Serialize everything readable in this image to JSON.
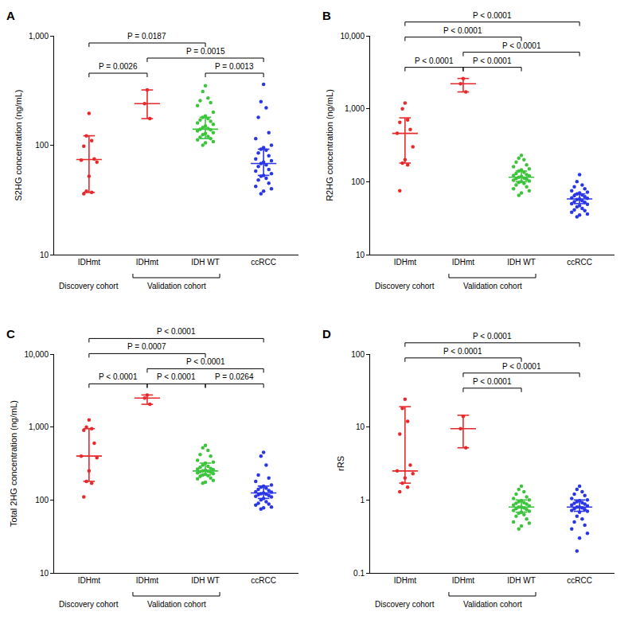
{
  "chart_data": [
    {
      "type": "scatter",
      "panel": "A",
      "y_label": "S2HG concentration (ng/mL)",
      "log": "y",
      "grid": false,
      "categories": [
        "IDHmt",
        "IDHmt",
        "IDH WT",
        "ccRCC"
      ],
      "colors": [
        "#e8292b",
        "#e8292b",
        "#3cc43c",
        "#2a36e6"
      ],
      "cohorts": [
        {
          "label": "Discovery cohort",
          "from": 0,
          "to": 0
        },
        {
          "label": "Validation cohort",
          "from": 1,
          "to": 2
        }
      ],
      "points": [
        [
          195,
          122,
          110,
          98,
          75,
          73,
          70,
          52,
          38,
          37,
          36
        ],
        [
          320,
          240,
          175
        ],
        [
          350,
          310,
          270,
          255,
          245,
          230,
          200,
          185,
          180,
          175,
          170,
          165,
          160,
          155,
          150,
          145,
          142,
          140,
          138,
          135,
          130,
          128,
          125,
          120,
          118,
          115,
          112,
          108,
          105,
          100
        ],
        [
          360,
          250,
          220,
          180,
          130,
          115,
          100,
          95,
          92,
          90,
          85,
          80,
          75,
          72,
          70,
          68,
          66,
          64,
          60,
          58,
          55,
          53,
          52,
          50,
          48,
          45,
          42,
          40,
          38,
          36
        ]
      ],
      "median": [
        74,
        240,
        140,
        68
      ],
      "q1": [
        37,
        175,
        115,
        53
      ],
      "q3": [
        122,
        320,
        180,
        92
      ],
      "ylim": [
        10,
        1000
      ],
      "yticks": [
        10,
        100,
        {
          "value": 1000,
          "label": "1,000"
        }
      ],
      "comparisons": [
        {
          "from": 1,
          "to": 3,
          "label": "P = 0.0015"
        },
        {
          "from": 0,
          "to": 2,
          "label": "P = 0.0187"
        },
        {
          "from": 0,
          "to": 1,
          "label": "P = 0.0026"
        },
        {
          "from": 2,
          "to": 3,
          "label": "P = 0.0013"
        }
      ]
    },
    {
      "type": "scatter",
      "panel": "B",
      "y_label": "R2HG concentration (ng/mL)",
      "log": "y",
      "grid": false,
      "categories": [
        "IDHmt",
        "IDHmt",
        "IDH WT",
        "ccRCC"
      ],
      "colors": [
        "#e8292b",
        "#e8292b",
        "#3cc43c",
        "#2a36e6"
      ],
      "cohorts": [
        {
          "label": "Discovery cohort",
          "from": 0,
          "to": 0
        },
        {
          "label": "Validation cohort",
          "from": 1,
          "to": 2
        }
      ],
      "points": [
        [
          1200,
          1000,
          700,
          650,
          520,
          460,
          300,
          200,
          180,
          170,
          75
        ],
        [
          2600,
          2200,
          1700
        ],
        [
          230,
          210,
          200,
          185,
          170,
          160,
          150,
          145,
          140,
          135,
          130,
          125,
          122,
          120,
          118,
          115,
          112,
          110,
          108,
          105,
          102,
          100,
          98,
          95,
          90,
          85,
          80,
          75,
          70,
          65
        ],
        [
          125,
          100,
          90,
          85,
          80,
          75,
          72,
          70,
          68,
          66,
          64,
          62,
          60,
          59,
          58,
          57,
          55,
          53,
          52,
          50,
          49,
          47,
          45,
          43,
          41,
          40,
          38,
          36,
          35,
          33
        ]
      ],
      "median": [
        460,
        2200,
        115,
        58
      ],
      "q1": [
        180,
        1700,
        100,
        50
      ],
      "q3": [
        750,
        2600,
        140,
        68
      ],
      "ylim": [
        10,
        10000
      ],
      "yticks": [
        10,
        100,
        {
          "value": 1000,
          "label": "1,000"
        },
        {
          "value": 10000,
          "label": "10,000"
        }
      ],
      "comparisons": [
        {
          "from": 0,
          "to": 3,
          "label": "P < 0.0001"
        },
        {
          "from": 1,
          "to": 3,
          "label": "P < 0.0001"
        },
        {
          "from": 0,
          "to": 2,
          "label": "P < 0.0001"
        },
        {
          "from": 0,
          "to": 1,
          "label": "P < 0.0001"
        },
        {
          "from": 1,
          "to": 2,
          "label": "P < 0.0001"
        }
      ]
    },
    {
      "type": "scatter",
      "panel": "C",
      "y_label": "Total 2HG concentration (ng/mL)",
      "log": "y",
      "grid": false,
      "categories": [
        "IDHmt",
        "IDHmt",
        "IDH WT",
        "ccRCC"
      ],
      "colors": [
        "#e8292b",
        "#e8292b",
        "#3cc43c",
        "#2a36e6"
      ],
      "cohorts": [
        {
          "label": "Discovery cohort",
          "from": 0,
          "to": 0
        },
        {
          "label": "Validation cohort",
          "from": 1,
          "to": 2
        }
      ],
      "points": [
        [
          1250,
          1000,
          950,
          900,
          600,
          400,
          380,
          250,
          180,
          170,
          110
        ],
        [
          2750,
          2500,
          2050
        ],
        [
          560,
          520,
          480,
          420,
          400,
          350,
          330,
          320,
          300,
          290,
          280,
          270,
          265,
          260,
          255,
          250,
          248,
          245,
          240,
          235,
          230,
          225,
          220,
          215,
          210,
          200,
          195,
          185,
          175,
          170
        ],
        [
          450,
          400,
          300,
          220,
          200,
          180,
          160,
          155,
          150,
          145,
          140,
          135,
          130,
          128,
          125,
          122,
          120,
          118,
          115,
          112,
          110,
          105,
          100,
          95,
          90,
          88,
          85,
          80,
          78,
          75
        ]
      ],
      "median": [
        400,
        2500,
        250,
        125
      ],
      "q1": [
        180,
        2050,
        220,
        105
      ],
      "q3": [
        950,
        2750,
        320,
        155
      ],
      "ylim": [
        10,
        10000
      ],
      "yticks": [
        10,
        100,
        {
          "value": 1000,
          "label": "1,000"
        },
        {
          "value": 10000,
          "label": "10,000"
        }
      ],
      "comparisons": [
        {
          "from": 0,
          "to": 3,
          "label": "P < 0.0001"
        },
        {
          "from": 1,
          "to": 3,
          "label": "P < 0.0001"
        },
        {
          "from": 0,
          "to": 2,
          "label": "P = 0.0007"
        },
        {
          "from": 0,
          "to": 1,
          "label": "P < 0.0001"
        },
        {
          "from": 1,
          "to": 2,
          "label": "P < 0.0001"
        },
        {
          "from": 2,
          "to": 3,
          "label": "P = 0.0264"
        }
      ]
    },
    {
      "type": "scatter",
      "panel": "D",
      "y_label": "rRS",
      "log": "y",
      "grid": false,
      "categories": [
        "IDHmt",
        "IDHmt",
        "IDH WT",
        "ccRCC"
      ],
      "colors": [
        "#e8292b",
        "#e8292b",
        "#3cc43c",
        "#2a36e6"
      ],
      "cohorts": [
        {
          "label": "Discovery cohort",
          "from": 0,
          "to": 0
        },
        {
          "label": "Validation cohort",
          "from": 1,
          "to": 2
        }
      ],
      "points": [
        [
          24,
          18,
          12,
          8,
          3.0,
          2.5,
          2.3,
          2.0,
          1.7,
          1.5,
          1.3
        ],
        [
          14,
          9.5,
          5.2
        ],
        [
          1.55,
          1.4,
          1.3,
          1.2,
          1.1,
          1.05,
          1.0,
          0.98,
          0.95,
          0.92,
          0.9,
          0.88,
          0.85,
          0.83,
          0.8,
          0.8,
          0.78,
          0.76,
          0.74,
          0.72,
          0.7,
          0.68,
          0.66,
          0.63,
          0.6,
          0.55,
          0.5,
          0.48,
          0.44,
          0.4
        ],
        [
          1.55,
          1.4,
          1.3,
          1.2,
          1.15,
          1.05,
          1.0,
          0.98,
          0.95,
          0.92,
          0.9,
          0.88,
          0.85,
          0.83,
          0.8,
          0.8,
          0.78,
          0.76,
          0.74,
          0.72,
          0.7,
          0.68,
          0.6,
          0.55,
          0.5,
          0.45,
          0.4,
          0.35,
          0.3,
          0.2
        ]
      ],
      "median": [
        2.5,
        9.5,
        0.8,
        0.8
      ],
      "q1": [
        1.7,
        5.2,
        0.68,
        0.7
      ],
      "q3": [
        19,
        14.5,
        1.0,
        1.0
      ],
      "ylim": [
        0.1,
        100
      ],
      "yticks": [
        0.1,
        1,
        10,
        100
      ],
      "comparisons": [
        {
          "from": 0,
          "to": 3,
          "label": "P < 0.0001"
        },
        {
          "from": 1,
          "to": 3,
          "label": "P < 0.0001"
        },
        {
          "from": 0,
          "to": 2,
          "label": "P < 0.0001"
        },
        {
          "from": 1,
          "to": 2,
          "label": "P < 0.0001"
        }
      ]
    }
  ]
}
